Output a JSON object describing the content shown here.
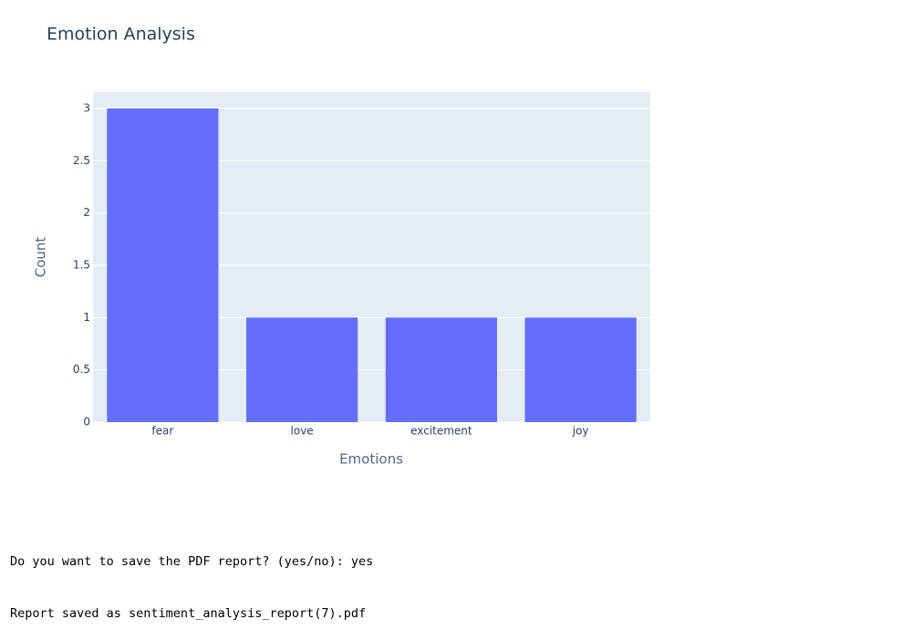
{
  "chart_data": {
    "type": "bar",
    "title": "Emotion Analysis",
    "x_label": "Emotions",
    "y_label": "Count",
    "categories": [
      "fear",
      "love",
      "excitement",
      "joy"
    ],
    "values": [
      3,
      1,
      1,
      1
    ],
    "color": "#636efa",
    "ylim": [
      0,
      3.157
    ],
    "yticks": [
      0,
      0.5,
      1,
      1.5,
      2,
      2.5,
      3
    ],
    "grid": true
  },
  "console": {
    "lines": [
      "Do you want to save the PDF report? (yes/no): yes",
      "Report saved as sentiment_analysis_report(7).pdf"
    ]
  }
}
